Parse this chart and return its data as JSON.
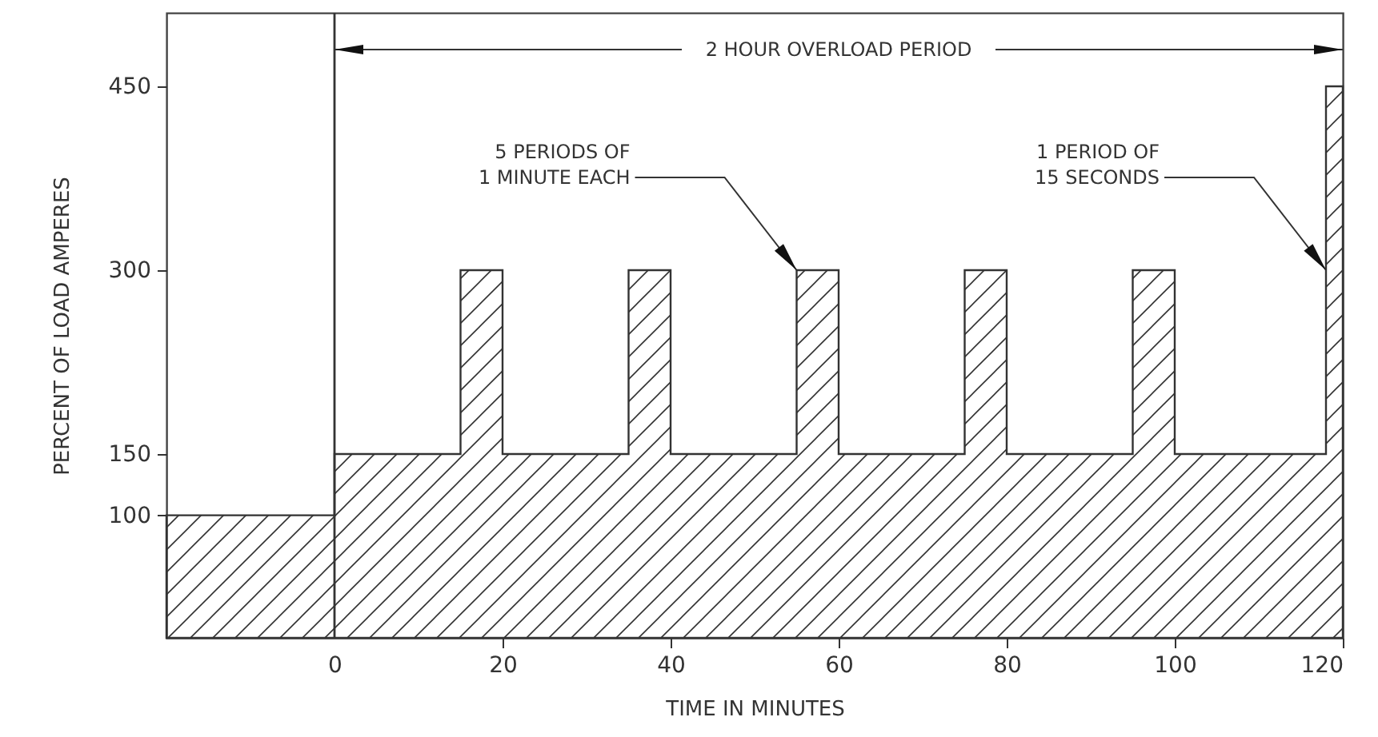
{
  "chart_data": {
    "type": "area",
    "xlabel": "TIME IN MINUTES",
    "ylabel": "PERCENT OF LOAD AMPERES",
    "x": [
      -20,
      0,
      0,
      15,
      15,
      20,
      20,
      35,
      35,
      40,
      40,
      55,
      55,
      60,
      60,
      75,
      75,
      80,
      80,
      95,
      95,
      100,
      100,
      118,
      118,
      120
    ],
    "series": [
      {
        "color": "#333333",
        "values": [
          100,
          100,
          150,
          150,
          300,
          300,
          150,
          150,
          300,
          300,
          150,
          150,
          300,
          300,
          150,
          150,
          300,
          300,
          150,
          150,
          300,
          300,
          150,
          150,
          450,
          450
        ]
      }
    ],
    "xlim": [
      -20,
      120
    ],
    "xticks": [
      0,
      20,
      40,
      60,
      80,
      100,
      120
    ],
    "ylim": [
      0,
      510
    ],
    "yticks": [
      100,
      150,
      300,
      450
    ],
    "grid": false,
    "ref_lines": [
      {
        "axis": "x",
        "value": 0,
        "color": "#333333"
      }
    ],
    "annotations": [
      {
        "text": "2 HOUR OVERLOAD PERIOD",
        "x": 0,
        "y": 480
      },
      {
        "text": "5 PERIODS OF\n1 MINUTE EACH",
        "x": 55,
        "y": 300
      },
      {
        "text": "1 PERIOD OF\n15 SECONDS",
        "x": 118,
        "y": 300
      }
    ]
  }
}
